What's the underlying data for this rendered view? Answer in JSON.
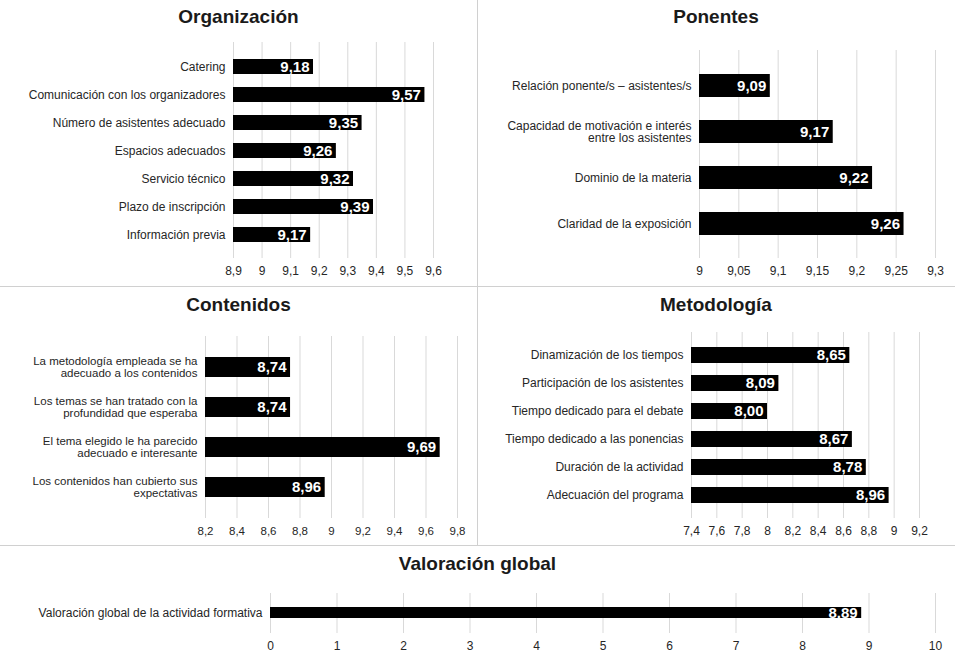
{
  "chart_data": [
    {
      "type": "bar",
      "title": "Organización",
      "orientation": "horizontal",
      "data_labels": true,
      "grid": true,
      "color": "#000000",
      "categories": [
        "Catering",
        "Comunicación con los organizadores",
        "Número de asistentes adecuado",
        "Espacios adecuados",
        "Servicio técnico",
        "Plazo de inscripción",
        "Información previa"
      ],
      "values": [
        9.18,
        9.57,
        9.35,
        9.26,
        9.32,
        9.39,
        9.17
      ],
      "value_labels": [
        "9,18",
        "9,57",
        "9,35",
        "9,26",
        "9,32",
        "9,39",
        "9,17"
      ],
      "xlim": [
        8.9,
        9.6
      ],
      "xticks": [
        {
          "value": 8.9,
          "label": "8,9"
        },
        9,
        {
          "value": 9.1,
          "label": "9,1"
        },
        {
          "value": 9.2,
          "label": "9,2"
        },
        {
          "value": 9.3,
          "label": "9,3"
        },
        {
          "value": 9.4,
          "label": "9,4"
        },
        {
          "value": 9.5,
          "label": "9,5"
        },
        {
          "value": 9.6,
          "label": "9,6"
        }
      ]
    },
    {
      "type": "bar",
      "title": "Ponentes",
      "orientation": "horizontal",
      "data_labels": true,
      "grid": true,
      "color": "#000000",
      "categories": [
        "Relación ponente/s – asistentes/s",
        "Capacidad de motivación e interés entre los asistentes",
        "Dominio de la materia",
        "Claridad de la exposición"
      ],
      "values": [
        9.09,
        9.17,
        9.22,
        9.26
      ],
      "value_labels": [
        "9,09",
        "9,17",
        "9,22",
        "9,26"
      ],
      "xlim": [
        9,
        9.3
      ],
      "xticks": [
        9,
        {
          "value": 9.05,
          "label": "9,05"
        },
        {
          "value": 9.1,
          "label": "9,1"
        },
        {
          "value": 9.15,
          "label": "9,15"
        },
        {
          "value": 9.2,
          "label": "9,2"
        },
        {
          "value": 9.25,
          "label": "9,25"
        },
        {
          "value": 9.3,
          "label": "9,3"
        }
      ]
    },
    {
      "type": "bar",
      "title": "Contenidos",
      "orientation": "horizontal",
      "data_labels": true,
      "grid": true,
      "color": "#000000",
      "categories": [
        "La metodología empleada se ha adecuado a los contenidos",
        "Los temas se han tratado con la profundidad que esperaba",
        "El tema elegido le ha parecido adecuado e interesante",
        "Los contenidos han cubierto sus expectativas"
      ],
      "values": [
        8.74,
        8.74,
        9.69,
        8.96
      ],
      "value_labels": [
        "8,74",
        "8,74",
        "9,69",
        "8,96"
      ],
      "xlim": [
        8.2,
        9.8
      ],
      "xticks": [
        {
          "value": 8.2,
          "label": "8,2"
        },
        {
          "value": 8.4,
          "label": "8,4"
        },
        {
          "value": 8.6,
          "label": "8,6"
        },
        {
          "value": 8.8,
          "label": "8,8"
        },
        9,
        {
          "value": 9.2,
          "label": "9,2"
        },
        {
          "value": 9.4,
          "label": "9,4"
        },
        {
          "value": 9.6,
          "label": "9,6"
        },
        {
          "value": 9.8,
          "label": "9,8"
        }
      ]
    },
    {
      "type": "bar",
      "title": "Metodología",
      "orientation": "horizontal",
      "data_labels": true,
      "grid": true,
      "color": "#000000",
      "categories": [
        "Dinamización de los tiempos",
        "Participación de los asistentes",
        "Tiempo dedicado para el debate",
        "Tiempo dedicado a las ponencias",
        "Duración de la actividad",
        "Adecuación del programa"
      ],
      "values": [
        8.65,
        8.09,
        8.0,
        8.67,
        8.78,
        8.96
      ],
      "value_labels": [
        "8,65",
        "8,09",
        "8,00",
        "8,67",
        "8,78",
        "8,96"
      ],
      "xlim": [
        7.4,
        9.2
      ],
      "xticks": [
        {
          "value": 7.4,
          "label": "7,4"
        },
        {
          "value": 7.6,
          "label": "7,6"
        },
        {
          "value": 7.8,
          "label": "7,8"
        },
        8,
        {
          "value": 8.2,
          "label": "8,2"
        },
        {
          "value": 8.4,
          "label": "8,4"
        },
        {
          "value": 8.6,
          "label": "8,6"
        },
        {
          "value": 8.8,
          "label": "8,8"
        },
        9,
        {
          "value": 9.2,
          "label": "9,2"
        }
      ]
    },
    {
      "type": "bar",
      "title": "Valoración global",
      "orientation": "horizontal",
      "data_labels": true,
      "grid": true,
      "color": "#000000",
      "categories": [
        "Valoración global de la actividad formativa"
      ],
      "values": [
        8.89
      ],
      "value_labels": [
        "8,89"
      ],
      "xlim": [
        0,
        10
      ],
      "xticks": [
        0,
        1,
        2,
        3,
        4,
        5,
        6,
        7,
        8,
        9,
        10
      ]
    }
  ]
}
